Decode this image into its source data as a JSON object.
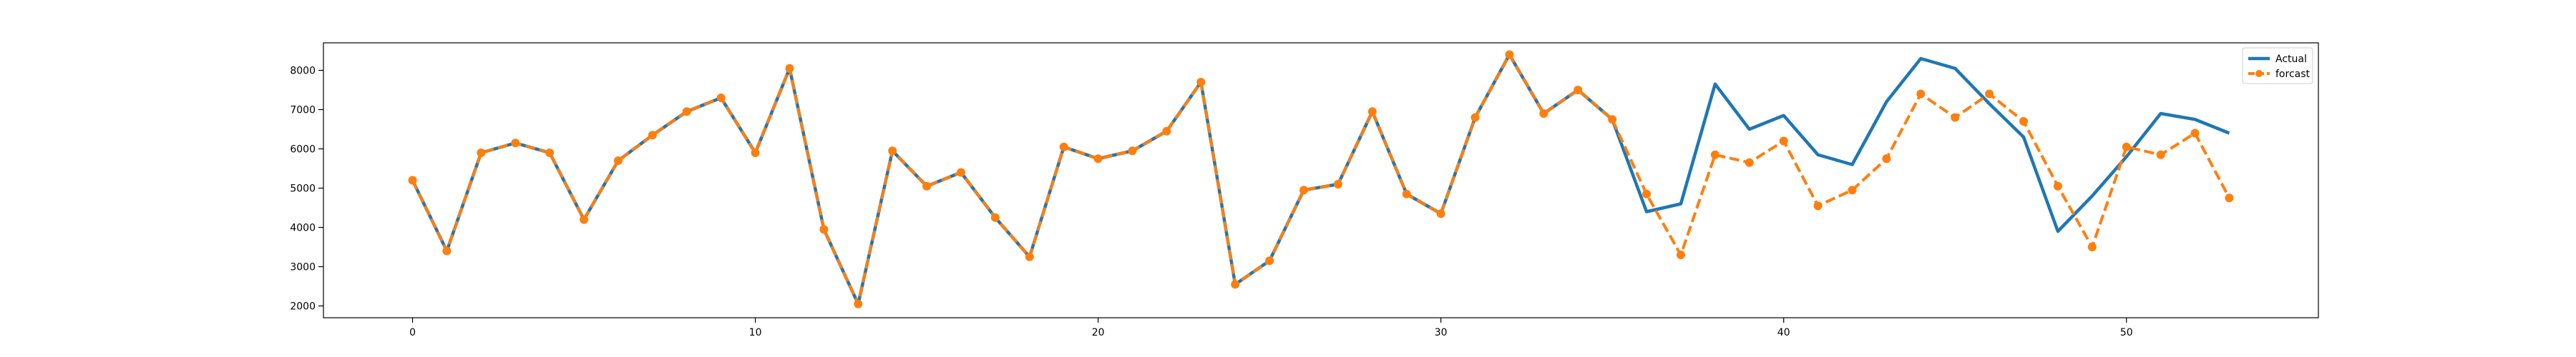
{
  "chart_data": {
    "type": "line",
    "title": "",
    "xlabel": "",
    "ylabel": "",
    "xlim": [
      -2.6,
      55.6
    ],
    "ylim": [
      1700,
      8700
    ],
    "xticks": [
      0,
      10,
      20,
      30,
      40,
      50
    ],
    "yticks": [
      2000,
      3000,
      4000,
      5000,
      6000,
      7000,
      8000
    ],
    "grid": false,
    "legend": {
      "placement": "top-right",
      "entries": [
        "Actual",
        "forcast"
      ]
    },
    "x": [
      0,
      1,
      2,
      3,
      4,
      5,
      6,
      7,
      8,
      9,
      10,
      11,
      12,
      13,
      14,
      15,
      16,
      17,
      18,
      19,
      20,
      21,
      22,
      23,
      24,
      25,
      26,
      27,
      28,
      29,
      30,
      31,
      32,
      33,
      34,
      35,
      36,
      37,
      38,
      39,
      40,
      41,
      42,
      43,
      44,
      45,
      46,
      47,
      48,
      49,
      50,
      51,
      52,
      53
    ],
    "series": [
      {
        "name": "Actual",
        "color": "#1f77b4",
        "style": "solid",
        "marker": "none",
        "values": [
          5200,
          3400,
          5900,
          6150,
          5900,
          4200,
          5700,
          6350,
          6950,
          7300,
          5900,
          8050,
          3950,
          2050,
          5950,
          5050,
          5400,
          4250,
          3250,
          6050,
          5750,
          5950,
          6450,
          7700,
          2550,
          3150,
          4950,
          5100,
          6950,
          4850,
          4350,
          6800,
          8400,
          6900,
          7500,
          6750,
          4400,
          4600,
          7650,
          6500,
          6850,
          5850,
          5600,
          7200,
          8300,
          8050,
          7150,
          6300,
          3900,
          4800,
          5800,
          6900,
          6750,
          6400
        ]
      },
      {
        "name": "forcast",
        "color": "#ff7f0e",
        "style": "dashed",
        "marker": "circle",
        "values": [
          5200,
          3400,
          5900,
          6150,
          5900,
          4200,
          5700,
          6350,
          6950,
          7300,
          5900,
          8050,
          3950,
          2050,
          5950,
          5050,
          5400,
          4250,
          3250,
          6050,
          5750,
          5950,
          6450,
          7700,
          2550,
          3150,
          4950,
          5100,
          6950,
          4850,
          4350,
          6800,
          8400,
          6900,
          7500,
          6750,
          4850,
          3300,
          5850,
          5650,
          6200,
          4550,
          4950,
          5750,
          7400,
          6800,
          7400,
          6700,
          5050,
          3500,
          6050,
          5850,
          6400,
          4750
        ]
      }
    ]
  }
}
